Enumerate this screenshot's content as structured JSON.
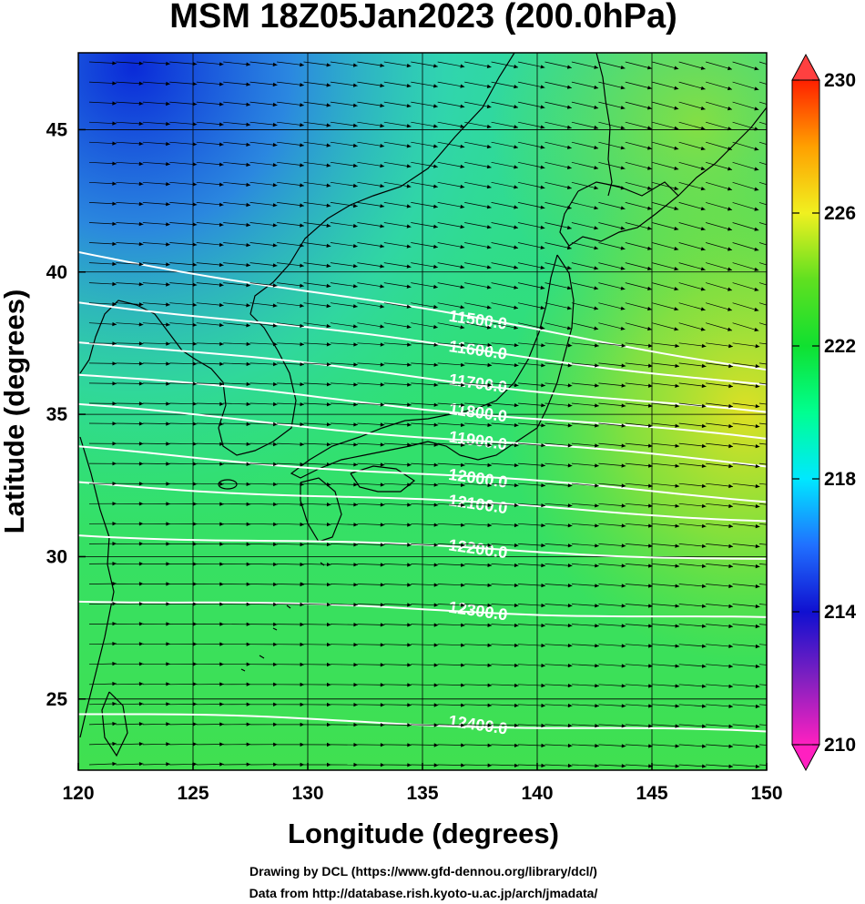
{
  "title": "MSM 18Z05Jan2023 (200.0hPa)",
  "xlabel": "Longitude (degrees)",
  "ylabel": "Latitude  (degrees)",
  "credits": [
    "Drawing by DCL (https://www.gfd-dennou.org/library/dcl/)",
    "Data from http://database.rish.kyoto-u.ac.jp/arch/jmadata/"
  ],
  "colorbar": {
    "ticks": [
      "210",
      "214",
      "218",
      "222",
      "226",
      "230"
    ],
    "min": 210,
    "max": 230,
    "colors": [
      "#ff20c0",
      "#8020c0",
      "#1010d0",
      "#2070ff",
      "#00e8ff",
      "#00ff90",
      "#10e030",
      "#60e020",
      "#f0f020",
      "#ffa000",
      "#ff2000"
    ]
  },
  "chart_data": {
    "type": "heatmap",
    "x_ticks": [
      "120",
      "125",
      "130",
      "135",
      "140",
      "145",
      "150"
    ],
    "y_ticks": [
      "25",
      "30",
      "35",
      "40",
      "45"
    ],
    "xlim": [
      120,
      150
    ],
    "ylim": [
      22.5,
      47.7
    ],
    "field_colors": {
      "cold_north": "#1040e0",
      "mid": "#20d880",
      "warm_east": "#e0e020",
      "base": "#30e060"
    },
    "contours": [
      {
        "label": "11500.0",
        "value": 11500,
        "lat_west": 40.7,
        "lat_east": 36.6
      },
      {
        "label": "11600.0",
        "value": 11600,
        "lat_west": 39.0,
        "lat_east": 36.0
      },
      {
        "label": "11700.0",
        "value": 11700,
        "lat_west": 37.6,
        "lat_east": 35.0
      },
      {
        "label": "11800.0",
        "value": 11800,
        "lat_west": 36.4,
        "lat_east": 34.1
      },
      {
        "label": "11900.0",
        "value": 11900,
        "lat_west": 35.3,
        "lat_east": 33.2
      },
      {
        "label": "12000.0",
        "value": 12000,
        "lat_west": 33.8,
        "lat_east": 32.0
      },
      {
        "label": "12100.0",
        "value": 12100,
        "lat_west": 32.6,
        "lat_east": 31.3
      },
      {
        "label": "12200.0",
        "value": 12200,
        "lat_west": 30.8,
        "lat_east": 29.9
      },
      {
        "label": "12300.0",
        "value": 12300,
        "lat_west": 28.5,
        "lat_east": 27.8
      },
      {
        "label": "12400.0",
        "value": 12400,
        "lat_west": 24.5,
        "lat_east": 23.8
      }
    ]
  }
}
